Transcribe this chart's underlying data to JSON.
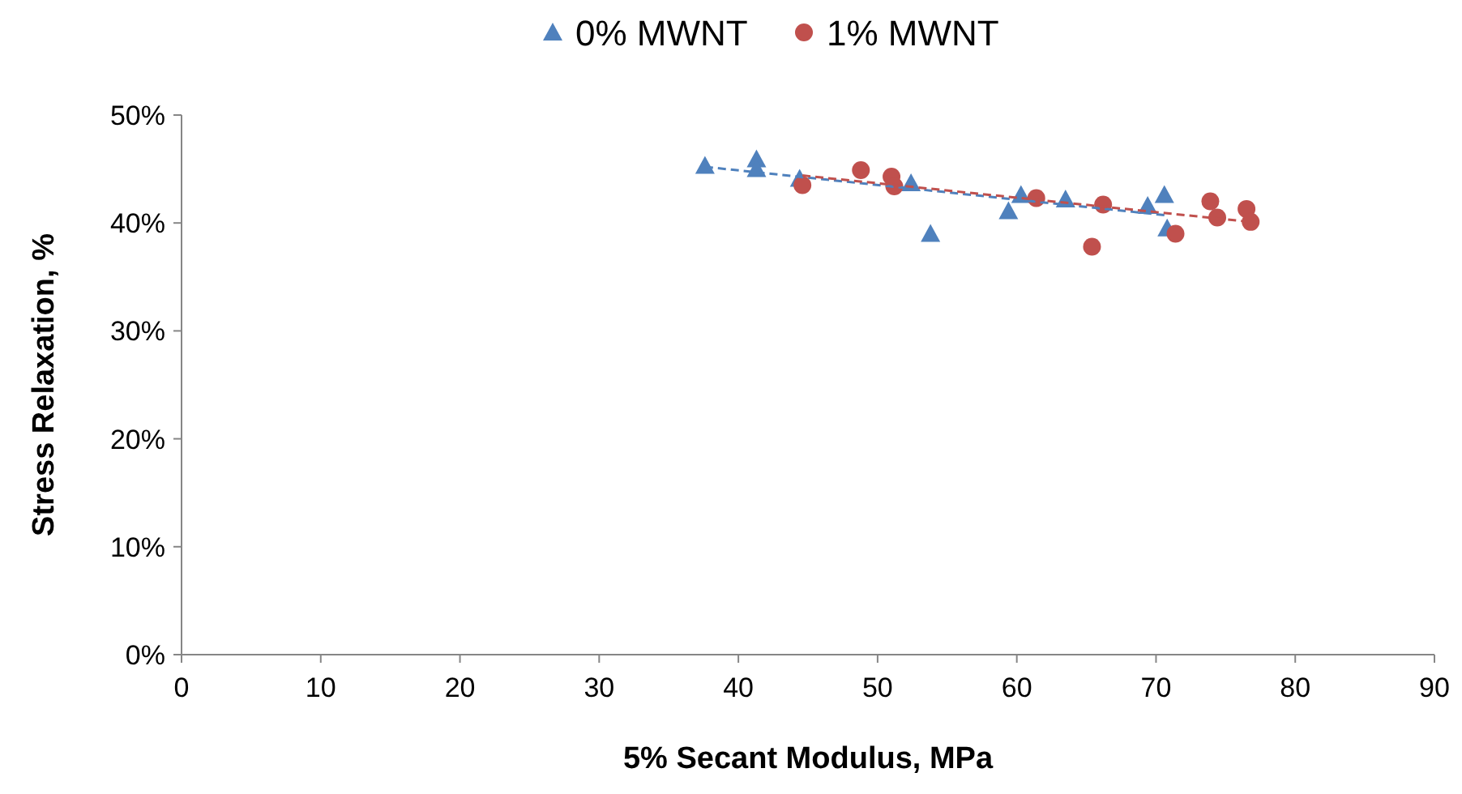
{
  "chart_data": {
    "type": "scatter",
    "xlabel": "5% Secant Modulus, MPa",
    "ylabel": "Stress Relaxation, %",
    "xlim": [
      0,
      90
    ],
    "xticks": [
      0,
      10,
      20,
      30,
      40,
      50,
      60,
      70,
      80,
      90
    ],
    "ylim": [
      0,
      50
    ],
    "yticks": [
      {
        "value": 0,
        "label": "0%"
      },
      {
        "value": 10,
        "label": "10%"
      },
      {
        "value": 20,
        "label": "20%"
      },
      {
        "value": 30,
        "label": "30%"
      },
      {
        "value": 40,
        "label": "40%"
      },
      {
        "value": 50,
        "label": "50%"
      }
    ],
    "grid": false,
    "legend": "top",
    "series": [
      {
        "name": "0% MWNT",
        "marker": "triangle",
        "color": "#4f81bd",
        "x": [
          37.6,
          41.3,
          41.3,
          44.4,
          52.4,
          53.8,
          59.4,
          60.3,
          63.5,
          69.4,
          70.6,
          70.8
        ],
        "values": [
          45.3,
          45.9,
          45.0,
          44.1,
          43.7,
          39.0,
          41.1,
          42.6,
          42.2,
          41.6,
          42.6,
          39.5
        ]
      },
      {
        "name": "1% MWNT",
        "marker": "circle",
        "color": "#c0504d",
        "x": [
          44.6,
          48.8,
          51.0,
          51.2,
          61.4,
          66.2,
          65.4,
          71.4,
          73.9,
          74.4,
          76.5,
          76.8
        ],
        "values": [
          43.5,
          44.9,
          44.3,
          43.4,
          42.3,
          41.7,
          37.8,
          39.0,
          42.0,
          40.5,
          41.3,
          40.1
        ]
      },
      {
        "type": "line",
        "line_style": "dashed",
        "marker": "none",
        "color": "#4f81bd",
        "x": [
          37.6,
          70.8
        ],
        "values": [
          45.2,
          40.7
        ]
      },
      {
        "type": "line",
        "line_style": "dashed",
        "marker": "none",
        "color": "#c0504d",
        "x": [
          44.6,
          76.8
        ],
        "values": [
          44.4,
          40.1
        ]
      }
    ]
  }
}
